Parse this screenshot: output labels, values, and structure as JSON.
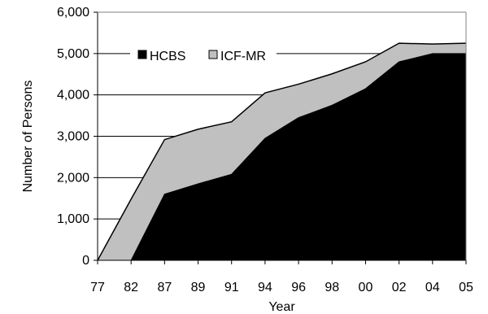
{
  "chart_data": {
    "type": "area",
    "stacked": true,
    "categories": [
      "77",
      "82",
      "87",
      "89",
      "91",
      "94",
      "96",
      "98",
      "00",
      "02",
      "04",
      "05"
    ],
    "series": [
      {
        "name": "HCBS",
        "values": [
          0,
          0,
          1600,
          1850,
          2080,
          2950,
          3450,
          3750,
          4150,
          4800,
          5000,
          5000
        ],
        "color": "#000000"
      },
      {
        "name": "ICF-MR",
        "values": [
          0,
          1480,
          1320,
          1320,
          1270,
          1100,
          810,
          760,
          650,
          450,
          230,
          250
        ],
        "color": "#c0c0c0"
      }
    ],
    "total_line_color": "#000000",
    "xlabel": "Year",
    "ylabel": "Number of Persons",
    "ylim": [
      0,
      6000
    ],
    "yticks": [
      "0",
      "1,000",
      "2,000",
      "3,000",
      "4,000",
      "5,000",
      "6,000"
    ],
    "grid": true,
    "legend_position": "top-left inside plot"
  }
}
